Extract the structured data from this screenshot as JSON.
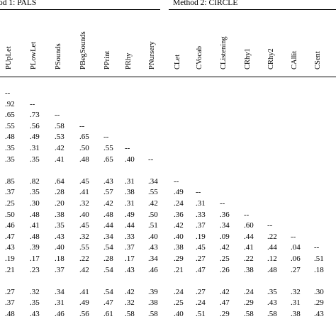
{
  "method_headers": {
    "method1": "od 1: PALS",
    "method2": "Method 2: CIRCLE"
  },
  "columns": [
    "PUpLet",
    "PLowLet",
    "PSounds",
    "PBegSounds",
    "PPrint",
    "PRhy",
    "PNursery",
    "CLet",
    "CVocab",
    "CListening",
    "CRhy1",
    "CRhy2",
    "CAllit",
    "CSent"
  ],
  "rows": [
    [
      "--"
    ],
    [
      ".92",
      "--"
    ],
    [
      ".65",
      ".73",
      "--"
    ],
    [
      ".55",
      ".56",
      ".58",
      "--"
    ],
    [
      ".48",
      ".49",
      ".53",
      ".65",
      "--"
    ],
    [
      ".35",
      ".31",
      ".42",
      ".50",
      ".55",
      "--"
    ],
    [
      ".35",
      ".35",
      ".41",
      ".48",
      ".65",
      ".40",
      "--"
    ],
    [],
    [
      ".85",
      ".82",
      ".64",
      ".45",
      ".43",
      ".31",
      ".34",
      "--"
    ],
    [
      ".37",
      ".35",
      ".28",
      ".41",
      ".57",
      ".38",
      ".55",
      ".49",
      "--"
    ],
    [
      ".25",
      ".30",
      ".20",
      ".32",
      ".42",
      ".31",
      ".42",
      ".24",
      ".31",
      "--"
    ],
    [
      ".50",
      ".48",
      ".38",
      ".40",
      ".48",
      ".49",
      ".50",
      ".36",
      ".33",
      ".36",
      "--"
    ],
    [
      ".46",
      ".41",
      ".35",
      ".45",
      ".44",
      ".44",
      ".51",
      ".42",
      ".37",
      ".34",
      ".60",
      "--"
    ],
    [
      ".47",
      ".48",
      ".43",
      ".32",
      ".34",
      ".33",
      ".40",
      ".40",
      ".19",
      ".09",
      ".44",
      ".22",
      "--"
    ],
    [
      ".43",
      ".39",
      ".40",
      ".55",
      ".54",
      ".37",
      ".43",
      ".38",
      ".45",
      ".42",
      ".41",
      ".44",
      ".04",
      "--"
    ],
    [
      ".19",
      ".17",
      ".18",
      ".22",
      ".28",
      ".17",
      ".34",
      ".29",
      ".27",
      ".25",
      ".22",
      ".12",
      ".06",
      ".51"
    ],
    [
      ".21",
      ".23",
      ".37",
      ".42",
      ".54",
      ".43",
      ".46",
      ".21",
      ".47",
      ".26",
      ".38",
      ".48",
      ".27",
      ".18"
    ],
    [],
    [
      ".27",
      ".32",
      ".34",
      ".41",
      ".54",
      ".42",
      ".39",
      ".24",
      ".27",
      ".42",
      ".24",
      ".35",
      ".32",
      ".30"
    ],
    [
      ".37",
      ".35",
      ".31",
      ".49",
      ".47",
      ".32",
      ".38",
      ".25",
      ".24",
      ".47",
      ".29",
      ".43",
      ".31",
      ".29"
    ],
    [
      ".48",
      ".43",
      ".46",
      ".56",
      ".61",
      ".58",
      ".58",
      ".40",
      ".51",
      ".29",
      ".58",
      ".58",
      ".38",
      ".43"
    ]
  ]
}
